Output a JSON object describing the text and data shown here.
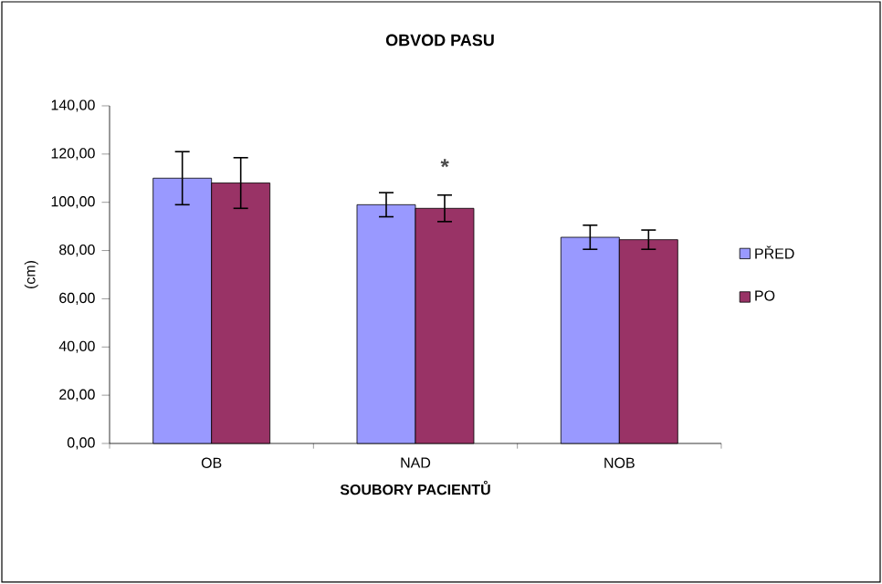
{
  "chart_data": {
    "type": "bar",
    "title": "OBVOD PASU",
    "xlabel": "SOUBORY PACIENTŮ",
    "ylabel": "(cm)",
    "categories": [
      "OB",
      "NAD",
      "NOB"
    ],
    "series": [
      {
        "name": "PŘED",
        "color": "#9999ff",
        "values": [
          110,
          99,
          85.5
        ],
        "errors": [
          11,
          5,
          5
        ]
      },
      {
        "name": "PO",
        "color": "#993366",
        "values": [
          108,
          97.5,
          84.5
        ],
        "errors": [
          10.5,
          5.5,
          4
        ]
      }
    ],
    "ylim": [
      0,
      140
    ],
    "yticks": [
      {
        "value": 0,
        "label": "0,00"
      },
      {
        "value": 20,
        "label": "20,00"
      },
      {
        "value": 40,
        "label": "40,00"
      },
      {
        "value": 60,
        "label": "60,00"
      },
      {
        "value": 80,
        "label": "80,00"
      },
      {
        "value": 100,
        "label": "100,00"
      },
      {
        "value": 120,
        "label": "120,00"
      },
      {
        "value": 140,
        "label": "140,00"
      }
    ],
    "annotations": [
      "*"
    ],
    "legend": "right",
    "grid": false
  }
}
